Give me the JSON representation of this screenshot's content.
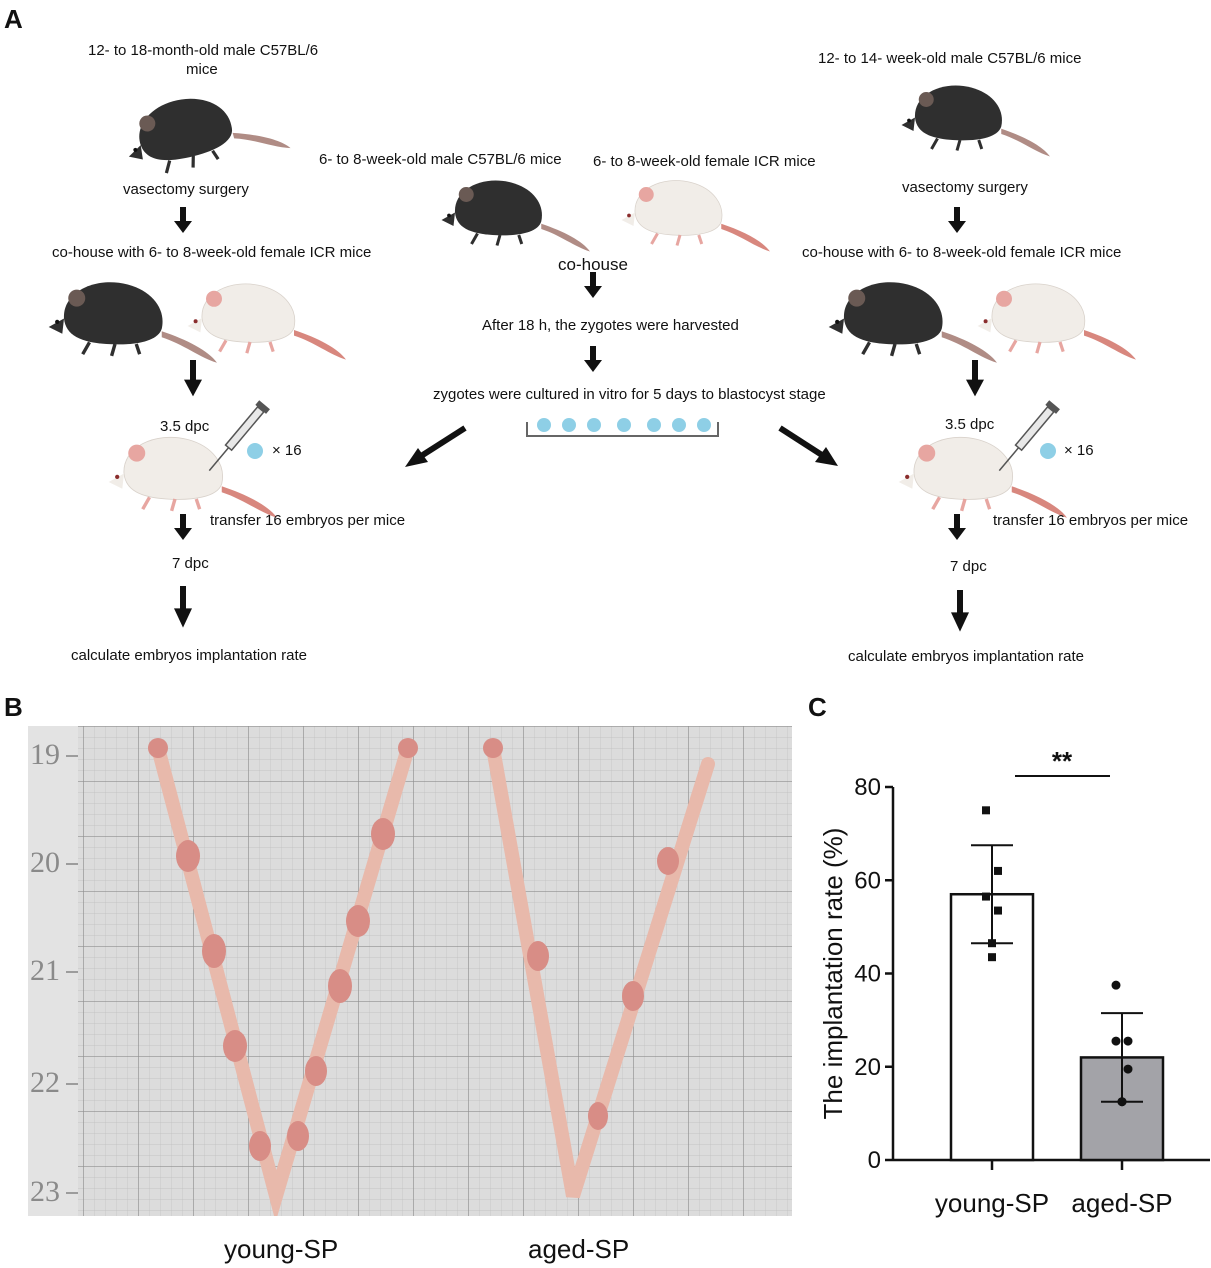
{
  "panels": {
    "a": "A",
    "b": "B",
    "c": "C"
  },
  "left": {
    "mouse_desc_line1": "12- to 18-month-old male C57BL/6",
    "mouse_desc_line2": "mice",
    "surgery": "vasectomy surgery",
    "cohouse": "co-house with 6- to 8-week-old female ICR mice",
    "dpc35": "3.5 dpc",
    "times16": "× 16",
    "transfer": "transfer 16 embryos per mice",
    "dpc7": "7 dpc",
    "calc": "calculate embryos implantation rate"
  },
  "center": {
    "male": "6- to 8-week-old male C57BL/6 mice",
    "female": "6- to 8-week-old female ICR mice",
    "cohouse": "co-house",
    "harvest": "After 18 h, the zygotes were harvested",
    "culture": "zygotes were cultured in vitro for 5 days to blastocyst stage"
  },
  "right": {
    "mouse_desc": "12- to 14- week-old male C57BL/6 mice",
    "surgery": "vasectomy surgery",
    "cohouse": "co-house with 6- to 8-week-old female ICR mice",
    "dpc35": "3.5 dpc",
    "times16": "× 16",
    "transfer": "transfer 16 embryos per mice",
    "dpc7": "7 dpc",
    "calc": "calculate embryos implantation rate"
  },
  "photo": {
    "ruler_labels": [
      "19",
      "20",
      "21",
      "22",
      "23"
    ],
    "captions": [
      "young-SP",
      "aged-SP"
    ]
  },
  "colors": {
    "aged_mouse": "#2f2f2f",
    "young_mouse": "#3a3a3a",
    "white_mouse": "#f1ede8",
    "ear_pink": "#e7a6a1",
    "tail_pink": "#d8877e",
    "embryo": "#8ecfe6",
    "bar_young": "#ffffff",
    "bar_aged": "#a3a3a8",
    "photo_bg": "#dcdcdc",
    "uterus": "#e8b9ab"
  },
  "chart_data": {
    "type": "bar",
    "categories": [
      "young-SP",
      "aged-SP"
    ],
    "values": [
      57,
      22
    ],
    "error": [
      10.5,
      9.5
    ],
    "points": [
      [
        75,
        62,
        56.5,
        53.5,
        46.5,
        43.5
      ],
      [
        37.5,
        25.5,
        25.5,
        19.5,
        12.5,
        12.5
      ]
    ],
    "ylabel": "The implantation rate (%)",
    "ylim": [
      0,
      80
    ],
    "yticks": [
      0,
      20,
      40,
      60,
      80
    ],
    "significance": "**"
  }
}
